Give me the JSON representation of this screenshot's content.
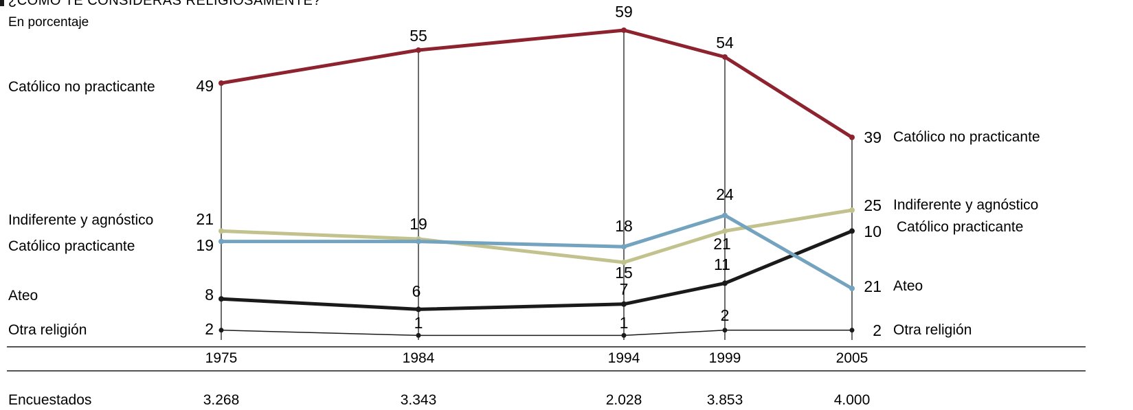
{
  "title": "¿CÓMO TE CONSIDERAS RELIGIOSAMENTE?",
  "subtitle": "En porcentaje",
  "respondents_label": "Encuestados",
  "colors": {
    "catolico_no_practicante": "#8e2330",
    "indiferente": "#c2c28e",
    "catolico_practicante": "#73a3be",
    "ateo": "#1a1a1a",
    "otra": "#1a1a1a"
  },
  "chart_data": {
    "type": "line",
    "title": "¿CÓMO TE CONSIDERAS RELIGIOSAMENTE?",
    "subtitle": "En porcentaje",
    "x": [
      "1975",
      "1984",
      "1994",
      "1999",
      "2005"
    ],
    "respondents": [
      "3.268",
      "3.343",
      "2.028",
      "3.853",
      "4.000"
    ],
    "series": [
      {
        "name": "Católico no practicante",
        "values": [
          49,
          55,
          59,
          54,
          39
        ]
      },
      {
        "name": "Indiferente y agnóstico",
        "values": [
          21,
          null,
          15,
          21,
          25
        ]
      },
      {
        "name": "Católico practicante",
        "values": [
          19,
          19,
          18,
          24,
          10
        ]
      },
      {
        "name": "Ateo",
        "values": [
          8,
          6,
          7,
          11,
          21
        ]
      },
      {
        "name": "Otra religión",
        "values": [
          2,
          1,
          1,
          2,
          2
        ]
      }
    ],
    "ylim": [
      0,
      60
    ],
    "grid": false,
    "legend": "labels at line ends"
  }
}
